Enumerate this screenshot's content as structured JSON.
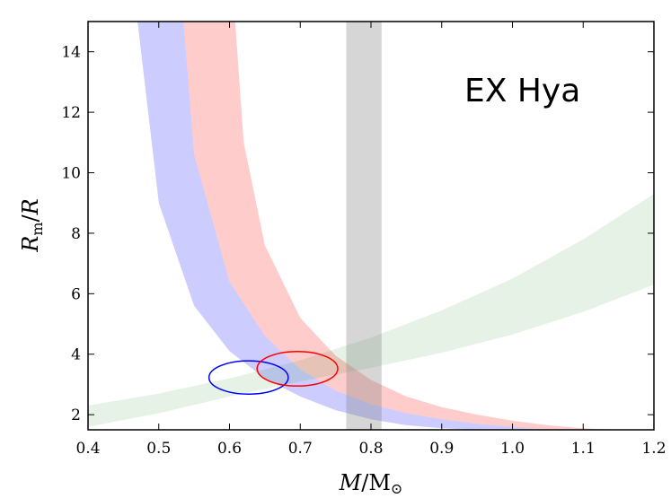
{
  "chart_data": {
    "type": "line",
    "annotation": "EX Hya",
    "xlabel": {
      "italic": "M",
      "sep": "/",
      "roman": "M",
      "sub": "⊙"
    },
    "ylabel": {
      "italic1": "R",
      "sub": "m",
      "sep": "/",
      "italic2": "R"
    },
    "xlim": [
      0.4,
      1.2
    ],
    "ylim": [
      1.5,
      15
    ],
    "xticks": [
      0.4,
      0.5,
      0.6,
      0.7,
      0.8,
      0.9,
      1.0,
      1.1,
      1.2
    ],
    "xtick_labels": [
      "0.4",
      "0.5",
      "0.6",
      "0.7",
      "0.8",
      "0.9",
      "1.0",
      "1.1",
      "1.2"
    ],
    "yticks": [
      2,
      4,
      6,
      8,
      10,
      12,
      14
    ],
    "ytick_labels": [
      "2",
      "4",
      "6",
      "8",
      "10",
      "12",
      "14"
    ],
    "grid": false,
    "colors": {
      "blue_band": "#0000ff",
      "red_band": "#ff0000",
      "green_band": "#008000",
      "grey_band": "#808080",
      "blue_ellipse": "#0000ff",
      "red_ellipse": "#ff0000"
    },
    "bands": [
      {
        "id": "blue",
        "lower": [
          [
            0.47,
            15.0
          ],
          [
            0.5,
            9.0
          ],
          [
            0.55,
            5.6
          ],
          [
            0.6,
            4.1
          ],
          [
            0.65,
            3.2
          ],
          [
            0.7,
            2.6
          ],
          [
            0.75,
            2.15
          ],
          [
            0.8,
            1.85
          ],
          [
            0.85,
            1.65
          ],
          [
            0.9,
            1.55
          ],
          [
            0.95,
            1.5
          ]
        ],
        "upper": [
          [
            0.535,
            15.0
          ],
          [
            0.55,
            10.6
          ],
          [
            0.6,
            6.4
          ],
          [
            0.65,
            4.6
          ],
          [
            0.7,
            3.5
          ],
          [
            0.75,
            2.8
          ],
          [
            0.8,
            2.35
          ],
          [
            0.85,
            2.05
          ],
          [
            0.9,
            1.85
          ],
          [
            0.95,
            1.7
          ],
          [
            1.0,
            1.6
          ],
          [
            1.05,
            1.5
          ]
        ]
      },
      {
        "id": "red",
        "lower": [
          [
            0.535,
            15.0
          ],
          [
            0.55,
            10.6
          ],
          [
            0.6,
            6.4
          ],
          [
            0.65,
            4.6
          ],
          [
            0.7,
            3.5
          ],
          [
            0.75,
            2.8
          ],
          [
            0.8,
            2.35
          ],
          [
            0.85,
            2.05
          ],
          [
            0.9,
            1.85
          ],
          [
            0.95,
            1.7
          ],
          [
            1.0,
            1.6
          ],
          [
            1.05,
            1.5
          ]
        ],
        "upper": [
          [
            0.608,
            15.0
          ],
          [
            0.62,
            11.0
          ],
          [
            0.65,
            7.6
          ],
          [
            0.7,
            5.2
          ],
          [
            0.75,
            3.95
          ],
          [
            0.8,
            3.15
          ],
          [
            0.85,
            2.6
          ],
          [
            0.9,
            2.25
          ],
          [
            0.95,
            2.0
          ],
          [
            1.0,
            1.8
          ],
          [
            1.05,
            1.65
          ],
          [
            1.1,
            1.55
          ],
          [
            1.15,
            1.5
          ]
        ]
      },
      {
        "id": "green",
        "lower": [
          [
            0.4,
            1.6
          ],
          [
            0.5,
            2.05
          ],
          [
            0.6,
            2.6
          ],
          [
            0.7,
            3.1
          ],
          [
            0.8,
            3.55
          ],
          [
            0.9,
            4.05
          ],
          [
            1.0,
            4.65
          ],
          [
            1.1,
            5.4
          ],
          [
            1.2,
            6.3
          ]
        ],
        "upper": [
          [
            0.4,
            2.3
          ],
          [
            0.5,
            2.7
          ],
          [
            0.6,
            3.2
          ],
          [
            0.7,
            3.8
          ],
          [
            0.8,
            4.55
          ],
          [
            0.9,
            5.45
          ],
          [
            1.0,
            6.5
          ],
          [
            1.1,
            7.8
          ],
          [
            1.2,
            9.3
          ]
        ]
      }
    ],
    "vband": {
      "x0": 0.765,
      "x1": 0.815
    },
    "ellipses": [
      {
        "id": "blue",
        "cx": 0.627,
        "cy": 3.23,
        "rx": 0.056,
        "ry": 0.55
      },
      {
        "id": "red",
        "cx": 0.696,
        "cy": 3.52,
        "rx": 0.057,
        "ry": 0.57
      }
    ]
  }
}
